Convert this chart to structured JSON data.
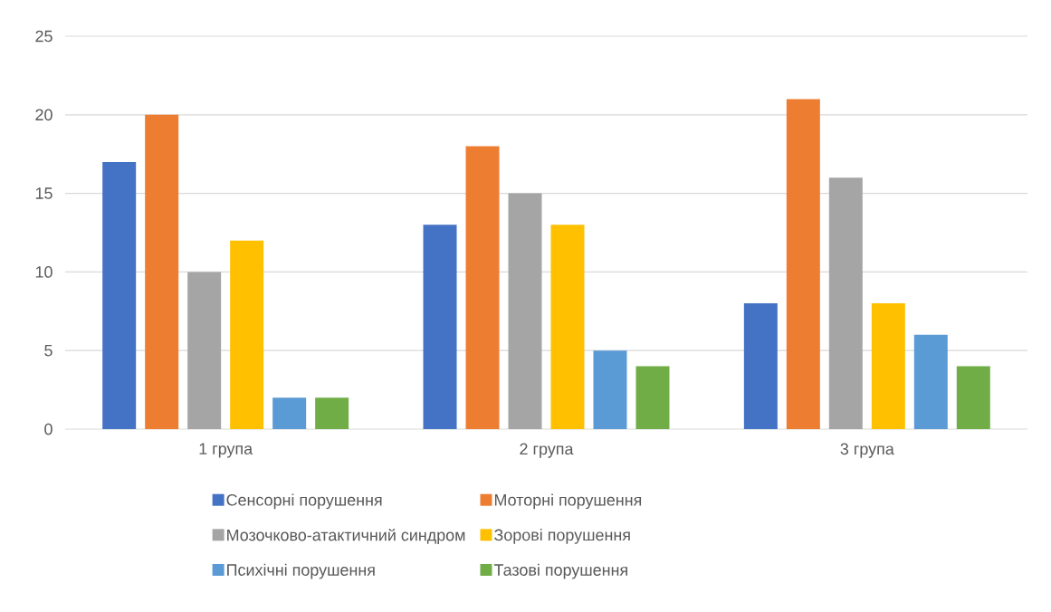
{
  "chart_data": {
    "type": "bar",
    "categories": [
      "1 група",
      "2 група",
      "3 група"
    ],
    "series": [
      {
        "name": "Сенсорні порушення",
        "color": "#4472c4",
        "values": [
          17,
          13,
          8
        ]
      },
      {
        "name": "Моторні порушення",
        "color": "#ed7d31",
        "values": [
          20,
          18,
          21
        ]
      },
      {
        "name": "Мозочково-атактичний синдром",
        "color": "#a5a5a5",
        "values": [
          10,
          15,
          16
        ]
      },
      {
        "name": "Зорові порушення",
        "color": "#ffc000",
        "values": [
          12,
          13,
          8
        ]
      },
      {
        "name": "Психічні порушення",
        "color": "#5b9bd5",
        "values": [
          2,
          5,
          6
        ]
      },
      {
        "name": "Тазові порушення",
        "color": "#70ad47",
        "values": [
          2,
          4,
          4
        ]
      }
    ],
    "ylim": [
      0,
      25
    ],
    "yticks": [
      0,
      5,
      10,
      15,
      20,
      25
    ],
    "grid": "y",
    "legend": "bottom"
  }
}
